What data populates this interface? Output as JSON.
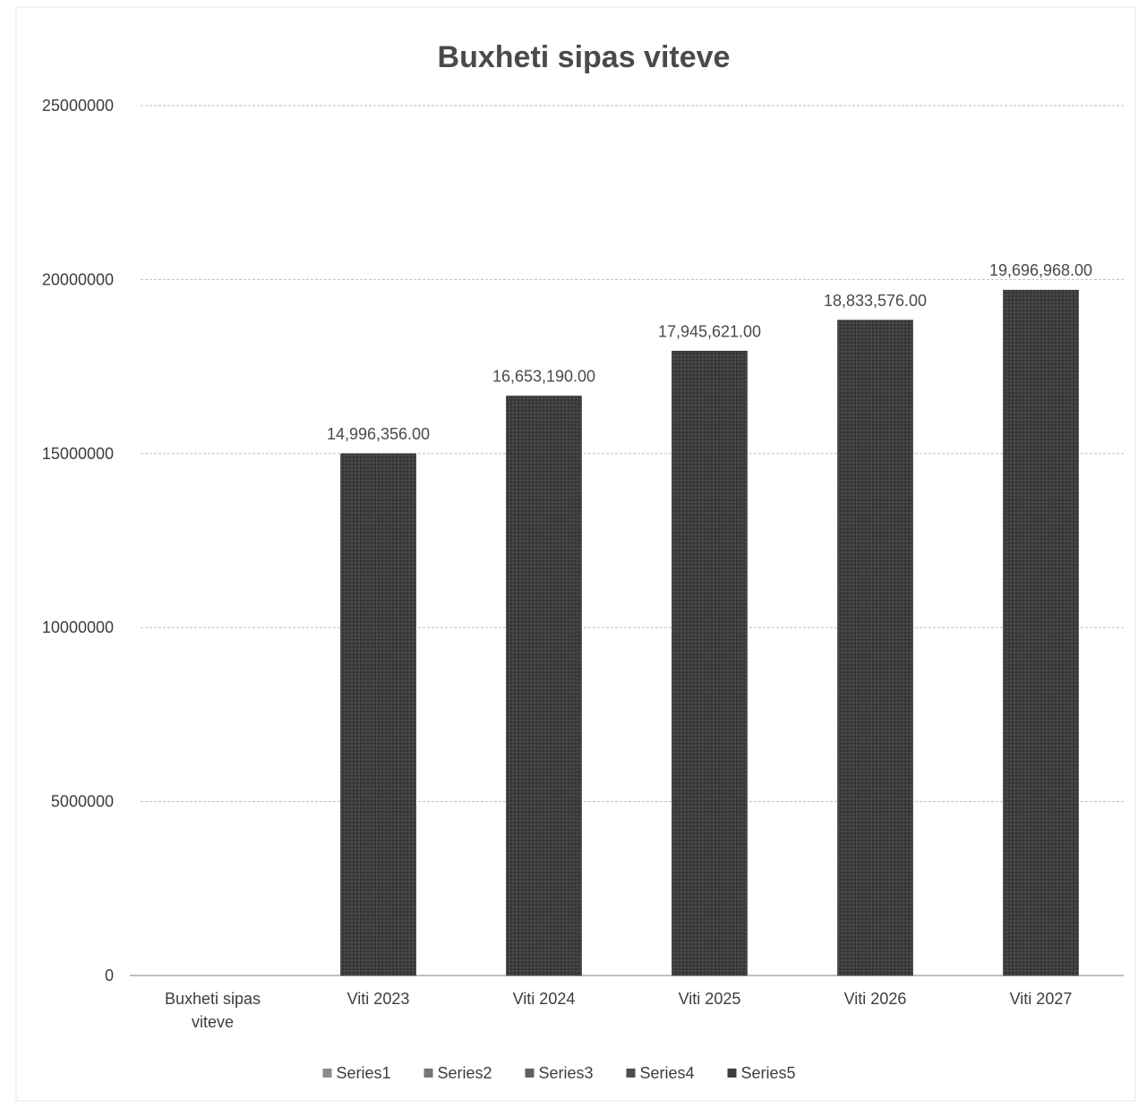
{
  "chart_data": {
    "type": "bar",
    "title": "Buxheti sipas viteve",
    "xlabel": "",
    "ylabel": "",
    "ylim": [
      0,
      25000000
    ],
    "yticks": [
      {
        "value": 0,
        "label": "0"
      },
      {
        "value": 5000000,
        "label": "5000000"
      },
      {
        "value": 10000000,
        "label": "10000000"
      },
      {
        "value": 15000000,
        "label": "15000000"
      },
      {
        "value": 20000000,
        "label": "20000000"
      },
      {
        "value": 25000000,
        "label": "25000000"
      }
    ],
    "categories": [
      [
        "Buxheti sipas",
        "viteve"
      ],
      [
        "Viti 2023"
      ],
      [
        "Viti 2024"
      ],
      [
        "Viti 2025"
      ],
      [
        "Viti 2026"
      ],
      [
        "Viti 2027"
      ]
    ],
    "series": [
      {
        "name": "Series1",
        "color": "#8c8c8c",
        "values": [
          null,
          null,
          null,
          null,
          null,
          null
        ],
        "labels": [
          null,
          null,
          null,
          null,
          null,
          null
        ]
      },
      {
        "name": "Series2",
        "color": "#767676",
        "values": [
          null,
          null,
          null,
          null,
          null,
          null
        ],
        "labels": [
          null,
          null,
          null,
          null,
          null,
          null
        ]
      },
      {
        "name": "Series3",
        "color": "#5f5f5f",
        "values": [
          null,
          null,
          null,
          null,
          null,
          null
        ],
        "labels": [
          null,
          null,
          null,
          null,
          null,
          null
        ]
      },
      {
        "name": "Series4",
        "color": "#4e4e4e",
        "values": [
          null,
          null,
          null,
          null,
          null,
          null
        ],
        "labels": [
          null,
          null,
          null,
          null,
          null,
          null
        ]
      },
      {
        "name": "Series5",
        "color": "#3e3c3f",
        "values": [
          null,
          14996356,
          16653190,
          17945621,
          18833576,
          19696968
        ],
        "labels": [
          null,
          "14,996,356.00",
          "16,653,190.00",
          "17,945,621.00",
          "18,833,576.00",
          "19,696,968.00"
        ]
      }
    ],
    "grid": true,
    "legend": "bottom"
  }
}
